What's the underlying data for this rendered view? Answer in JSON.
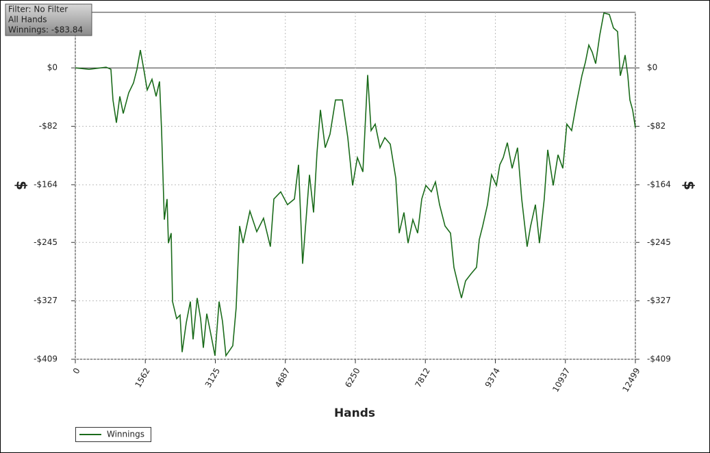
{
  "chart_data": {
    "type": "line",
    "info": [
      "Filter: No Filter",
      "All Hands",
      "Winnings: -$83.84"
    ],
    "xlabel": "Hands",
    "ylabel": "$",
    "y2label": "$",
    "x": [
      0,
      306,
      688,
      795,
      840,
      917,
      993,
      1070,
      1192,
      1299,
      1375,
      1452,
      1528,
      1605,
      1711,
      1803,
      1879,
      1925,
      1986,
      2047,
      2078,
      2139,
      2170,
      2261,
      2338,
      2384,
      2476,
      2567,
      2628,
      2720,
      2796,
      2857,
      2934,
      3025,
      3117,
      3209,
      3285,
      3361,
      3514,
      3590,
      3667,
      3743,
      3896,
      4049,
      4201,
      4354,
      4431,
      4584,
      4736,
      4889,
      4981,
      5073,
      5149,
      5226,
      5317,
      5394,
      5470,
      5577,
      5684,
      5806,
      5959,
      6081,
      6188,
      6295,
      6418,
      6525,
      6601,
      6693,
      6800,
      6907,
      7029,
      7152,
      7228,
      7335,
      7426,
      7533,
      7640,
      7732,
      7823,
      7946,
      8037,
      8129,
      8251,
      8373,
      8450,
      8557,
      8618,
      8709,
      8832,
      8954,
      9015,
      9091,
      9198,
      9290,
      9397,
      9473,
      9550,
      9641,
      9748,
      9870,
      9962,
      10084,
      10161,
      10268,
      10359,
      10466,
      10543,
      10665,
      10772,
      10879,
      10970,
      11077,
      11184,
      11306,
      11383,
      11460,
      11536,
      11612,
      11704,
      11796,
      11918,
      12010,
      12102,
      12163,
      12224,
      12270,
      12331,
      12377,
      12438,
      12499
    ],
    "series": [
      {
        "name": "Winnings",
        "color": "#1a6b1a",
        "values": [
          0,
          -2,
          1,
          -2,
          -45,
          -77,
          -40,
          -64,
          -35,
          -21,
          -2,
          25,
          -2,
          -31,
          -16,
          -40,
          -19,
          -88,
          -213,
          -184,
          -246,
          -232,
          -328,
          -352,
          -347,
          -399,
          -358,
          -328,
          -381,
          -323,
          -352,
          -393,
          -345,
          -374,
          -404,
          -328,
          -356,
          -404,
          -390,
          -337,
          -222,
          -246,
          -201,
          -230,
          -211,
          -251,
          -184,
          -174,
          -192,
          -184,
          -136,
          -275,
          -213,
          -150,
          -203,
          -119,
          -59,
          -112,
          -93,
          -45,
          -45,
          -98,
          -165,
          -126,
          -146,
          -10,
          -88,
          -79,
          -112,
          -98,
          -107,
          -155,
          -232,
          -203,
          -246,
          -213,
          -232,
          -184,
          -165,
          -174,
          -160,
          -192,
          -222,
          -232,
          -280,
          -308,
          -323,
          -299,
          -289,
          -280,
          -241,
          -222,
          -192,
          -150,
          -165,
          -136,
          -126,
          -105,
          -141,
          -112,
          -184,
          -251,
          -222,
          -192,
          -246,
          -184,
          -115,
          -165,
          -122,
          -141,
          -79,
          -88,
          -50,
          -11,
          8,
          32,
          22,
          6,
          46,
          77,
          75,
          56,
          51,
          -11,
          4,
          18,
          -11,
          -45,
          -59,
          -83.84
        ]
      }
    ],
    "xlim": [
      0,
      12499
    ],
    "xticks": [
      0,
      1562,
      3125,
      4687,
      6250,
      7812,
      9374,
      10937,
      12499
    ],
    "ylim": [
      -409,
      78
    ],
    "yticks": [
      {
        "value": 0,
        "label": "$0"
      },
      {
        "value": -82,
        "label": "-$82"
      },
      {
        "value": -164,
        "label": "-$164"
      },
      {
        "value": -245,
        "label": "-$245"
      },
      {
        "value": -327,
        "label": "-$327"
      },
      {
        "value": -409,
        "label": "-$409"
      }
    ],
    "grid": true,
    "legend": "bottom-left"
  }
}
